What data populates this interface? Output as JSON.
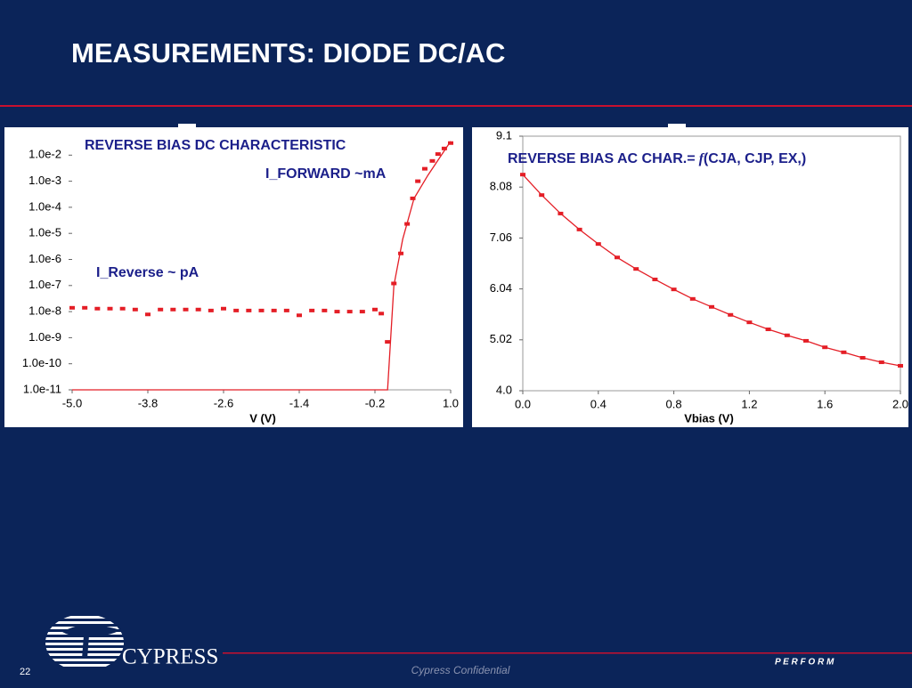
{
  "title": "MEASUREMENTS: DIODE DC/AC",
  "chart_data": [
    {
      "type": "scatter",
      "log_y": true,
      "color": "#e41e26",
      "annotation_color": "#1b1f8a",
      "annotations": [
        "REVERSE BIAS DC CHARACTERISTIC",
        "I_FORWARD ~mA",
        "I_Reverse ~ pA"
      ],
      "xlabel": "V (V)",
      "xlim": [
        -5,
        1
      ],
      "xticks": [
        {
          "value": -5,
          "label": "-5.0"
        },
        -3.8,
        -2.6,
        -1.4,
        -0.2,
        {
          "value": 1,
          "label": "1.0"
        }
      ],
      "ylim": [
        1e-11,
        0.1
      ],
      "yticks": [
        {
          "value": 0.01,
          "label": "1.0e-2"
        },
        {
          "value": 0.001,
          "label": "1.0e-3"
        },
        {
          "value": 0.0001,
          "label": "1.0e-4"
        },
        {
          "value": 1e-05,
          "label": "1.0e-5"
        },
        {
          "value": 1e-06,
          "label": "1.0e-6"
        },
        {
          "value": 1e-07,
          "label": "1.0e-7"
        },
        {
          "value": 1e-08,
          "label": "1.0e-8"
        },
        {
          "value": 1e-09,
          "label": "1.0e-9"
        },
        {
          "value": 1e-10,
          "label": "1.0e-10"
        },
        {
          "value": 1e-11,
          "label": "1.0e-11"
        }
      ],
      "series": [
        {
          "markers": true,
          "line": false,
          "x": [
            -5.0,
            -4.8,
            -4.6,
            -4.4,
            -4.2,
            -4.0,
            -3.8,
            -3.6,
            -3.4,
            -3.2,
            -3.0,
            -2.8,
            -2.6,
            -2.4,
            -2.2,
            -2.0,
            -1.8,
            -1.6,
            -1.4,
            -1.2,
            -1.0,
            -0.8,
            -0.6,
            -0.4,
            -0.2,
            -0.1,
            0.0,
            0.1,
            0.21,
            0.31,
            0.4,
            0.48,
            0.59,
            0.71,
            0.8,
            0.9,
            1.0
          ],
          "values": [
            1.4e-08,
            1.4e-08,
            1.3e-08,
            1.3e-08,
            1.3e-08,
            1.2e-08,
            7.8e-09,
            1.2e-08,
            1.2e-08,
            1.2e-08,
            1.2e-08,
            1.1e-08,
            1.3e-08,
            1.1e-08,
            1.1e-08,
            1.1e-08,
            1.1e-08,
            1.1e-08,
            7.2e-09,
            1.1e-08,
            1.1e-08,
            1e-08,
            1e-08,
            1e-08,
            1.2e-08,
            8.4e-09,
            6.9e-10,
            1.2e-07,
            1.7e-06,
            2.3e-05,
            0.00022,
            0.001,
            0.003,
            0.006,
            0.011,
            0.018,
            0.029
          ]
        },
        {
          "markers": false,
          "line": true,
          "x": [
            -5.0,
            0.0,
            0.1,
            0.24,
            0.42,
            0.64,
            1.0
          ],
          "values": [
            1e-11,
            1e-11,
            1e-07,
            6e-06,
            0.00022,
            0.0017,
            0.034
          ]
        }
      ]
    },
    {
      "type": "scatter",
      "log_y": false,
      "color": "#e41e26",
      "annotation_color": "#1b1f8a",
      "grid_frame": true,
      "annotations": [
        [
          "REVERSE BIAS AC CHAR.=",
          "f",
          "(CJA, CJP, EX,)"
        ]
      ],
      "xlabel": "Vbias (V)",
      "xlim": [
        0,
        2
      ],
      "xticks": [
        {
          "value": 0,
          "label": "0.0"
        },
        0.4,
        0.8,
        1.2,
        1.6,
        {
          "value": 2,
          "label": "2.0"
        }
      ],
      "ylim": [
        4.0,
        9.1
      ],
      "yticks": [
        {
          "value": 4,
          "label": "4.0"
        },
        5.02,
        6.04,
        7.06,
        8.08,
        9.1
      ],
      "series": [
        {
          "markers": true,
          "line": true,
          "x": [
            0,
            0.1,
            0.2,
            0.3,
            0.4,
            0.5,
            0.6,
            0.7,
            0.8,
            0.9,
            1.0,
            1.1,
            1.2,
            1.3,
            1.4,
            1.5,
            1.6,
            1.7,
            1.8,
            1.9,
            2.0
          ],
          "values": [
            8.33,
            7.92,
            7.55,
            7.23,
            6.94,
            6.67,
            6.44,
            6.23,
            6.03,
            5.84,
            5.68,
            5.52,
            5.37,
            5.23,
            5.11,
            5.0,
            4.87,
            4.77,
            4.66,
            4.57,
            4.5
          ]
        }
      ]
    }
  ],
  "footer": {
    "logo": "CYPRESS",
    "page": "22",
    "confidential": "Cypress Confidential",
    "tagline": "P E R F O R M"
  }
}
